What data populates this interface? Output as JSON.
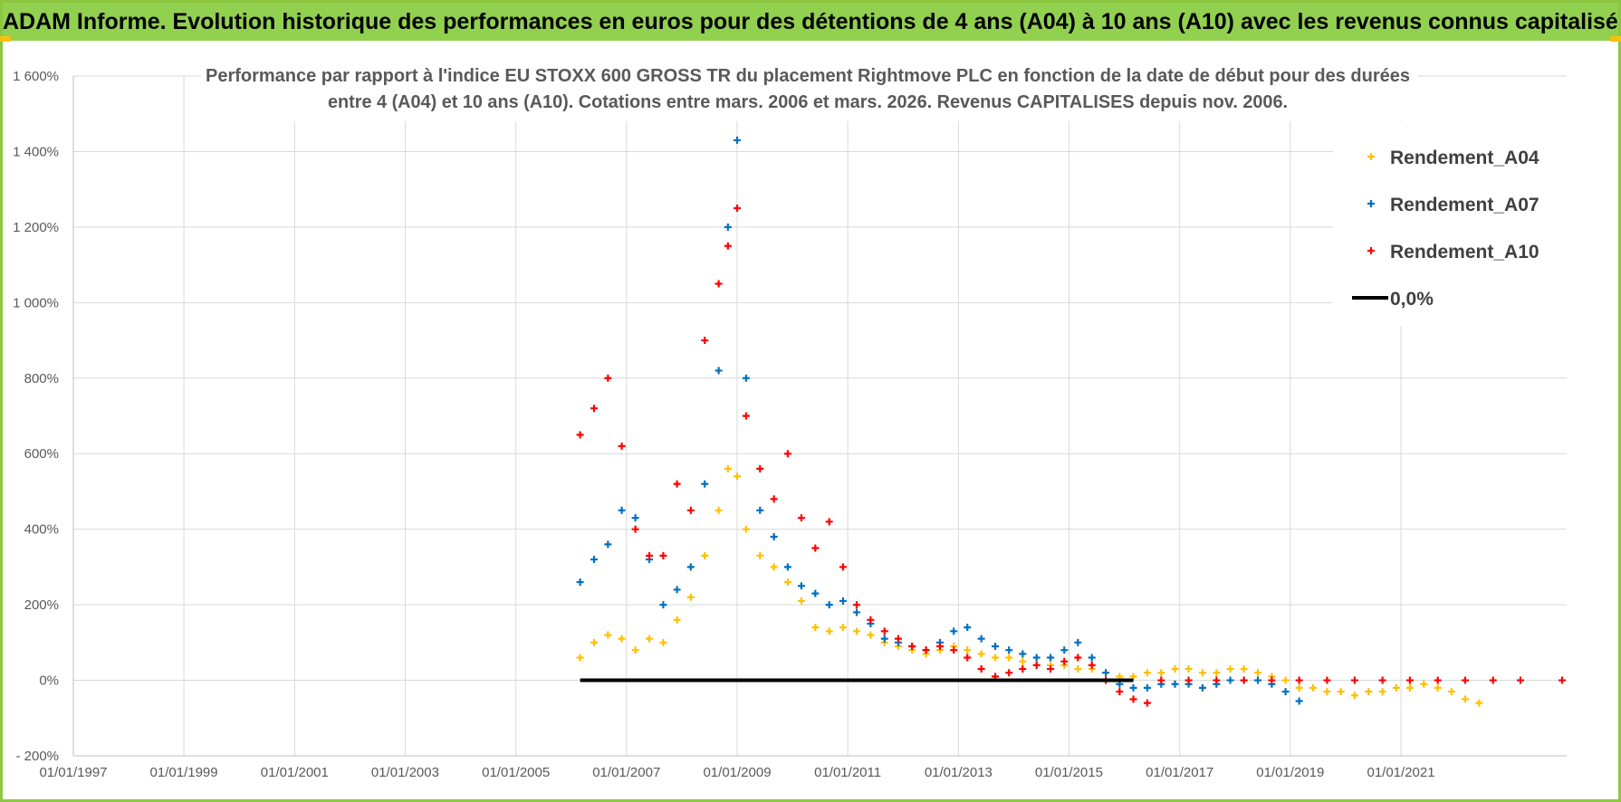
{
  "header": {
    "banner": "ADAM Informe. Evolution historique des performances en euros pour des détentions de 4 ans (A04) à 10 ans (A10) avec les revenus connus capitalisés"
  },
  "colors": {
    "banner_bg": "#92d050",
    "series_A04": "#ffc000",
    "series_A07": "#0070c0",
    "series_A10": "#ff0000",
    "zero_line": "#000000"
  },
  "chart_data": {
    "type": "scatter",
    "title_lines": [
      "Performance par rapport à l'indice EU STOXX 600 GROSS TR  du placement Rightmove PLC en fonction de la date de début pour des durées",
      "entre 4 (A04) et 10 ans (A10).  Cotations entre mars. 2006 et mars. 2026. Revenus CAPITALISES depuis nov. 2006."
    ],
    "xlabel": "",
    "ylabel": "",
    "x_range": [
      "1997-01-01",
      "2023-12-31"
    ],
    "x_ticks": [
      "01/01/1997",
      "01/01/1999",
      "01/01/2001",
      "01/01/2003",
      "01/01/2005",
      "01/01/2007",
      "01/01/2009",
      "01/01/2011",
      "01/01/2013",
      "01/01/2015",
      "01/01/2017",
      "01/01/2019",
      "01/01/2021"
    ],
    "y_range": [
      -200,
      1600
    ],
    "y_ticks": [
      "- 200%",
      "0%",
      "200%",
      "400%",
      "600%",
      "800%",
      "1 000%",
      "1 200%",
      "1 400%",
      "1 600%"
    ],
    "grid": true,
    "legend_position": "top-right",
    "series": [
      {
        "name": "Rendement_A04",
        "marker": "+",
        "color": "#ffc000",
        "points": [
          [
            "2006-03-01",
            60
          ],
          [
            "2006-06-01",
            100
          ],
          [
            "2006-09-01",
            120
          ],
          [
            "2006-12-01",
            110
          ],
          [
            "2007-03-01",
            80
          ],
          [
            "2007-06-01",
            110
          ],
          [
            "2007-09-01",
            100
          ],
          [
            "2007-12-01",
            160
          ],
          [
            "2008-03-01",
            220
          ],
          [
            "2008-06-01",
            330
          ],
          [
            "2008-09-01",
            450
          ],
          [
            "2008-11-01",
            560
          ],
          [
            "2009-01-01",
            540
          ],
          [
            "2009-03-01",
            400
          ],
          [
            "2009-06-01",
            330
          ],
          [
            "2009-09-01",
            300
          ],
          [
            "2009-12-01",
            260
          ],
          [
            "2010-03-01",
            210
          ],
          [
            "2010-06-01",
            140
          ],
          [
            "2010-09-01",
            130
          ],
          [
            "2010-12-01",
            140
          ],
          [
            "2011-03-01",
            130
          ],
          [
            "2011-06-01",
            120
          ],
          [
            "2011-09-01",
            100
          ],
          [
            "2011-12-01",
            90
          ],
          [
            "2012-03-01",
            80
          ],
          [
            "2012-06-01",
            70
          ],
          [
            "2012-09-01",
            80
          ],
          [
            "2012-12-01",
            90
          ],
          [
            "2013-03-01",
            80
          ],
          [
            "2013-06-01",
            70
          ],
          [
            "2013-09-01",
            60
          ],
          [
            "2013-12-01",
            60
          ],
          [
            "2014-03-01",
            50
          ],
          [
            "2014-06-01",
            40
          ],
          [
            "2014-09-01",
            40
          ],
          [
            "2014-12-01",
            40
          ],
          [
            "2015-03-01",
            30
          ],
          [
            "2015-06-01",
            30
          ],
          [
            "2015-09-01",
            20
          ],
          [
            "2015-12-01",
            10
          ],
          [
            "2016-03-01",
            10
          ],
          [
            "2016-06-01",
            20
          ],
          [
            "2016-09-01",
            20
          ],
          [
            "2016-12-01",
            30
          ],
          [
            "2017-03-01",
            30
          ],
          [
            "2017-06-01",
            20
          ],
          [
            "2017-09-01",
            20
          ],
          [
            "2017-12-01",
            30
          ],
          [
            "2018-03-01",
            30
          ],
          [
            "2018-06-01",
            20
          ],
          [
            "2018-09-01",
            10
          ],
          [
            "2018-12-01",
            0
          ],
          [
            "2019-03-01",
            -20
          ],
          [
            "2019-06-01",
            -20
          ],
          [
            "2019-09-01",
            -30
          ],
          [
            "2019-12-01",
            -30
          ],
          [
            "2020-03-01",
            -40
          ],
          [
            "2020-06-01",
            -30
          ],
          [
            "2020-09-01",
            -30
          ],
          [
            "2020-12-01",
            -20
          ],
          [
            "2021-03-01",
            -20
          ],
          [
            "2021-06-01",
            -10
          ],
          [
            "2021-09-01",
            -20
          ],
          [
            "2021-12-01",
            -30
          ],
          [
            "2022-03-01",
            -50
          ],
          [
            "2022-06-01",
            -60
          ]
        ]
      },
      {
        "name": "Rendement_A07",
        "marker": "+",
        "color": "#0070c0",
        "points": [
          [
            "2006-03-01",
            260
          ],
          [
            "2006-06-01",
            320
          ],
          [
            "2006-09-01",
            360
          ],
          [
            "2006-12-01",
            450
          ],
          [
            "2007-03-01",
            430
          ],
          [
            "2007-06-01",
            320
          ],
          [
            "2007-09-01",
            200
          ],
          [
            "2007-12-01",
            240
          ],
          [
            "2008-03-01",
            300
          ],
          [
            "2008-06-01",
            520
          ],
          [
            "2008-09-01",
            820
          ],
          [
            "2008-11-01",
            1200
          ],
          [
            "2009-01-01",
            1430
          ],
          [
            "2009-03-01",
            800
          ],
          [
            "2009-06-01",
            450
          ],
          [
            "2009-09-01",
            380
          ],
          [
            "2009-12-01",
            300
          ],
          [
            "2010-03-01",
            250
          ],
          [
            "2010-06-01",
            230
          ],
          [
            "2010-09-01",
            200
          ],
          [
            "2010-12-01",
            210
          ],
          [
            "2011-03-01",
            180
          ],
          [
            "2011-06-01",
            150
          ],
          [
            "2011-09-01",
            110
          ],
          [
            "2011-12-01",
            100
          ],
          [
            "2012-03-01",
            90
          ],
          [
            "2012-06-01",
            80
          ],
          [
            "2012-09-01",
            100
          ],
          [
            "2012-12-01",
            130
          ],
          [
            "2013-03-01",
            140
          ],
          [
            "2013-06-01",
            110
          ],
          [
            "2013-09-01",
            90
          ],
          [
            "2013-12-01",
            80
          ],
          [
            "2014-03-01",
            70
          ],
          [
            "2014-06-01",
            60
          ],
          [
            "2014-09-01",
            60
          ],
          [
            "2014-12-01",
            80
          ],
          [
            "2015-03-01",
            100
          ],
          [
            "2015-06-01",
            60
          ],
          [
            "2015-09-01",
            20
          ],
          [
            "2015-12-01",
            -10
          ],
          [
            "2016-03-01",
            -20
          ],
          [
            "2016-06-01",
            -20
          ],
          [
            "2016-09-01",
            -10
          ],
          [
            "2016-12-01",
            -10
          ],
          [
            "2017-03-01",
            -10
          ],
          [
            "2017-06-01",
            -20
          ],
          [
            "2017-09-01",
            -10
          ],
          [
            "2017-12-01",
            0
          ],
          [
            "2018-03-01",
            0
          ],
          [
            "2018-06-01",
            0
          ],
          [
            "2018-09-01",
            -10
          ],
          [
            "2018-12-01",
            -30
          ],
          [
            "2019-03-01",
            -55
          ]
        ]
      },
      {
        "name": "Rendement_A10",
        "marker": "+",
        "color": "#ff0000",
        "points": [
          [
            "2006-03-01",
            650
          ],
          [
            "2006-06-01",
            720
          ],
          [
            "2006-09-01",
            800
          ],
          [
            "2006-12-01",
            620
          ],
          [
            "2007-03-01",
            400
          ],
          [
            "2007-06-01",
            330
          ],
          [
            "2007-09-01",
            330
          ],
          [
            "2007-12-01",
            520
          ],
          [
            "2008-03-01",
            450
          ],
          [
            "2008-06-01",
            900
          ],
          [
            "2008-09-01",
            1050
          ],
          [
            "2008-11-01",
            1150
          ],
          [
            "2009-01-01",
            1250
          ],
          [
            "2009-03-01",
            700
          ],
          [
            "2009-06-01",
            560
          ],
          [
            "2009-09-01",
            480
          ],
          [
            "2009-12-01",
            600
          ],
          [
            "2010-03-01",
            430
          ],
          [
            "2010-06-01",
            350
          ],
          [
            "2010-09-01",
            420
          ],
          [
            "2010-12-01",
            300
          ],
          [
            "2011-03-01",
            200
          ],
          [
            "2011-06-01",
            160
          ],
          [
            "2011-09-01",
            130
          ],
          [
            "2011-12-01",
            110
          ],
          [
            "2012-03-01",
            90
          ],
          [
            "2012-06-01",
            80
          ],
          [
            "2012-09-01",
            90
          ],
          [
            "2012-12-01",
            80
          ],
          [
            "2013-03-01",
            60
          ],
          [
            "2013-06-01",
            30
          ],
          [
            "2013-09-01",
            10
          ],
          [
            "2013-12-01",
            20
          ],
          [
            "2014-03-01",
            30
          ],
          [
            "2014-06-01",
            40
          ],
          [
            "2014-09-01",
            30
          ],
          [
            "2014-12-01",
            50
          ],
          [
            "2015-03-01",
            60
          ],
          [
            "2015-06-01",
            40
          ],
          [
            "2015-09-01",
            0
          ],
          [
            "2015-12-01",
            -30
          ],
          [
            "2016-03-01",
            -50
          ],
          [
            "2016-06-01",
            -60
          ],
          [
            "2016-09-01",
            0
          ],
          [
            "2017-03-01",
            0
          ],
          [
            "2017-09-01",
            0
          ],
          [
            "2018-03-01",
            0
          ],
          [
            "2018-09-01",
            0
          ],
          [
            "2019-03-01",
            0
          ],
          [
            "2019-09-01",
            0
          ],
          [
            "2020-03-01",
            0
          ],
          [
            "2020-09-01",
            0
          ],
          [
            "2021-03-01",
            0
          ],
          [
            "2021-09-01",
            0
          ],
          [
            "2022-03-01",
            0
          ],
          [
            "2022-09-01",
            0
          ],
          [
            "2023-03-01",
            0
          ],
          [
            "2023-12-01",
            0
          ]
        ]
      },
      {
        "name": "0,0%",
        "marker": "line",
        "color": "#000000",
        "points": [
          [
            "2006-03-01",
            0
          ],
          [
            "2016-03-01",
            0
          ]
        ]
      }
    ]
  }
}
